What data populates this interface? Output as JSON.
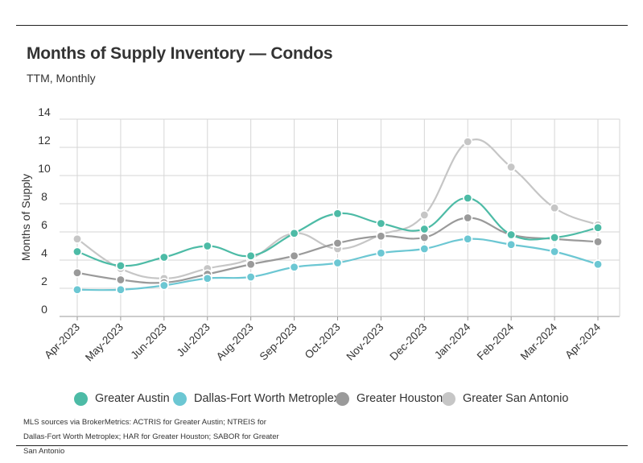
{
  "header": {
    "title": "Months of Supply Inventory — Condos",
    "subtitle": "TTM, Monthly"
  },
  "footer": {
    "source": "MLS sources via BrokerMetrics: ACTRIS for Greater Austin; NTREIS for Dallas-Fort Worth Metroplex; HAR for Greater Houston; SABOR for Greater San Antonio"
  },
  "chart_data": {
    "type": "line",
    "title": "Months of Supply Inventory — Condos",
    "subtitle": "TTM, Monthly",
    "xlabel": "",
    "ylabel": "Months of Supply",
    "ylim": [
      0,
      14
    ],
    "yticks": [
      0,
      2,
      4,
      6,
      8,
      10,
      12,
      14
    ],
    "grid": true,
    "legend_position": "bottom",
    "categories": [
      "Apr-2023",
      "May-2023",
      "Jun-2023",
      "Jul-2023",
      "Aug-2023",
      "Sep-2023",
      "Oct-2023",
      "Nov-2023",
      "Dec-2023",
      "Jan-2024",
      "Feb-2024",
      "Mar-2024",
      "Apr-2024"
    ],
    "series": [
      {
        "name": "Greater Austin",
        "color": "#4dbba6",
        "values": [
          4.6,
          3.6,
          4.2,
          5.0,
          4.3,
          5.9,
          7.3,
          6.6,
          6.2,
          8.4,
          5.8,
          5.6,
          6.3
        ]
      },
      {
        "name": "Dallas-Fort Worth Metroplex",
        "color": "#6cc7d3",
        "values": [
          1.9,
          1.9,
          2.2,
          2.7,
          2.8,
          3.5,
          3.8,
          4.5,
          4.8,
          5.5,
          5.1,
          4.6,
          3.7
        ]
      },
      {
        "name": "Greater Houston",
        "color": "#9a9a9a",
        "values": [
          3.1,
          2.6,
          2.4,
          3.0,
          3.7,
          4.3,
          5.2,
          5.7,
          5.6,
          7.0,
          5.8,
          5.5,
          5.3
        ]
      },
      {
        "name": "Greater San Antonio",
        "color": "#c6c6c6",
        "values": [
          5.5,
          3.4,
          2.7,
          3.4,
          4.1,
          5.9,
          4.8,
          5.8,
          7.2,
          12.4,
          10.6,
          7.7,
          6.5
        ]
      }
    ]
  }
}
